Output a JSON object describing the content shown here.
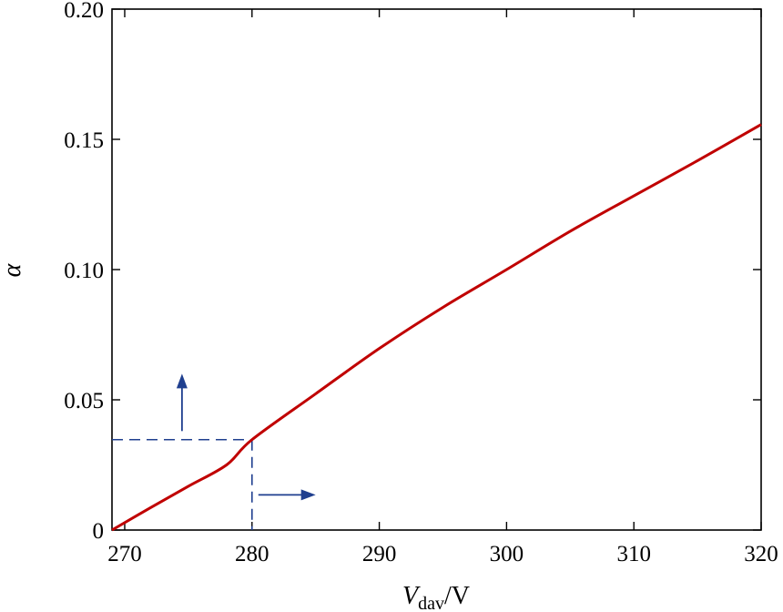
{
  "chart_data": {
    "type": "line",
    "title": "",
    "xlabel_var": "V",
    "xlabel_sub": "dav",
    "xlabel_unit": "/V",
    "ylabel": "α",
    "xlim": [
      269,
      320
    ],
    "ylim": [
      0,
      0.2
    ],
    "xticks": [
      270,
      280,
      290,
      300,
      310,
      320
    ],
    "yticks": [
      0,
      0.05,
      0.1,
      0.15,
      0.2
    ],
    "ytick_labels": [
      "0",
      "0.05",
      "0.10",
      "0.15",
      "0.20"
    ],
    "grid": false,
    "legend": "none",
    "series": [
      {
        "color": "#c00000",
        "x": [
          269,
          272,
          275,
          278,
          280,
          285,
          290,
          295,
          300,
          305,
          310,
          315,
          320
        ],
        "y": [
          0,
          0.0085,
          0.0168,
          0.025,
          0.0347,
          0.0523,
          0.0697,
          0.0855,
          0.1,
          0.1147,
          0.1283,
          0.1418,
          0.1557
        ]
      }
    ],
    "annotations": {
      "color": "#1f3f8f",
      "marker_point": {
        "x": 280,
        "y": 0.0347
      },
      "arrow_up": {
        "x": 274.5,
        "y_from": 0.038,
        "y_to": 0.06
      },
      "arrow_right": {
        "y": 0.0135,
        "x_from": 280.5,
        "x_to": 285
      }
    }
  }
}
